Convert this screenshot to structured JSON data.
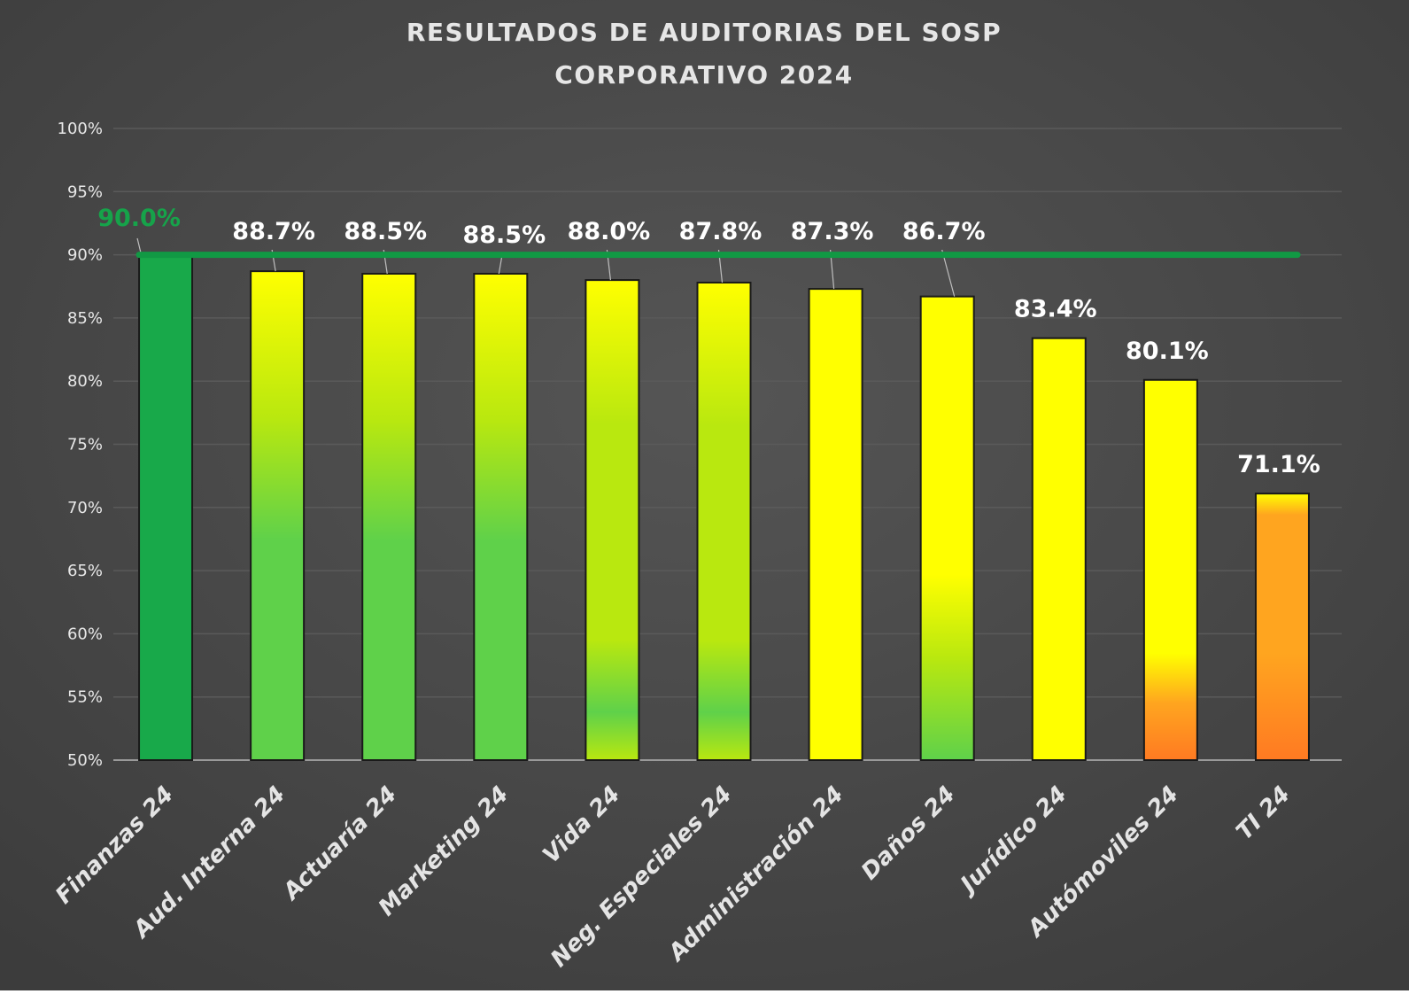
{
  "chart_data": {
    "type": "bar",
    "title_lines": [
      "RESULTADOS DE AUDITORIAS DEL SOSP",
      "CORPORATIVO 2024"
    ],
    "categories": [
      "Finanzas 24",
      "Aud. Interna 24",
      "Actuaría 24",
      "Marketing 24",
      "Vida 24",
      "Neg. Especiales 24",
      "Administración 24",
      "Daños 24",
      "Jurídico 24",
      "Autómoviles 24",
      "TI 24"
    ],
    "values": [
      90.0,
      88.7,
      88.5,
      88.5,
      88.0,
      87.8,
      87.3,
      86.7,
      83.4,
      80.1,
      71.1
    ],
    "value_labels": [
      "90.0%",
      "88.7%",
      "88.5%",
      "88.5%",
      "88.0%",
      "87.8%",
      "87.3%",
      "86.7%",
      "83.4%",
      "80.1%",
      "71.1%"
    ],
    "ylim": [
      50,
      100
    ],
    "yticks": [
      50,
      55,
      60,
      65,
      70,
      75,
      80,
      85,
      90,
      95,
      100
    ],
    "ytick_labels": [
      "50%",
      "55%",
      "60%",
      "65%",
      "70%",
      "75%",
      "80%",
      "85%",
      "90%",
      "95%",
      "100%"
    ],
    "target_line": 90,
    "bar_styles": [
      "solid-green",
      "green",
      "green",
      "green",
      "green-yellow",
      "green-yellow",
      "yellow",
      "yellow-green",
      "yellow",
      "yellow-orange",
      "orange"
    ],
    "grid": true
  },
  "colors": {
    "background": "#3c3c3c",
    "background_center": "#555555",
    "grid": "#5a5a5a",
    "axis_text": "#e8e8e8",
    "label_text": "#ffffff",
    "target_line": "#119944",
    "target_label": "#16a34a",
    "green": "#5fd14a",
    "dark_green": "#18a94a",
    "lime": "#b9e80f",
    "yellow": "#ffff00",
    "orange": "#ffa51f",
    "red_orange": "#ff7a22"
  }
}
